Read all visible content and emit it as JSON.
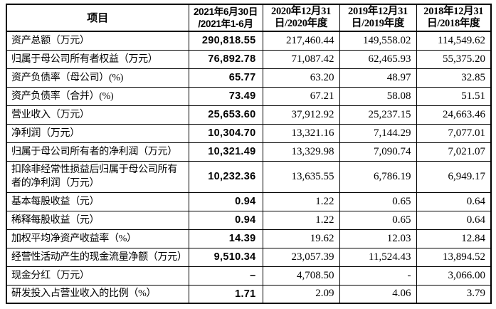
{
  "page": {
    "background_color": "#ffffff",
    "border_color": "#000000",
    "text_color": "#000000"
  },
  "table": {
    "columns": [
      {
        "label": "项目"
      },
      {
        "label": "2021年6月30日\n/2021年1-6月"
      },
      {
        "label": "2020年12月31\n日/2020年度"
      },
      {
        "label": "2019年12月31\n日/2019年度"
      },
      {
        "label": "2018年12月31\n日/2018年度"
      }
    ],
    "rows": [
      {
        "label": "资产总额（万元）",
        "tall": false,
        "values": [
          "290,818.55",
          "217,460.44",
          "149,558.02",
          "114,549.62"
        ]
      },
      {
        "label": "归属于母公司所有者权益（万元）",
        "tall": false,
        "values": [
          "76,892.78",
          "71,087.42",
          "62,465.93",
          "55,375.20"
        ]
      },
      {
        "label": "资产负债率（母公司）(%)",
        "tall": false,
        "values": [
          "65.77",
          "63.20",
          "48.97",
          "32.85"
        ]
      },
      {
        "label": "资产负债率（合并）(%)",
        "tall": false,
        "values": [
          "73.49",
          "67.21",
          "58.08",
          "51.51"
        ]
      },
      {
        "label": "营业收入（万元）",
        "tall": false,
        "values": [
          "25,653.60",
          "37,912.92",
          "25,237.15",
          "24,663.46"
        ]
      },
      {
        "label": "净利润（万元）",
        "tall": false,
        "values": [
          "10,304.70",
          "13,321.16",
          "7,144.29",
          "7,077.01"
        ]
      },
      {
        "label": "归属于母公司所有者的净利润（万元）",
        "tall": false,
        "values": [
          "10,321.49",
          "13,329.98",
          "7,090.74",
          "7,021.07"
        ]
      },
      {
        "label": "扣除非经常性损益后归属于母公司所有者的净利润（万元）",
        "tall": true,
        "values": [
          "10,232.36",
          "13,635.55",
          "6,786.19",
          "6,949.17"
        ]
      },
      {
        "label": "基本每股收益（元）",
        "tall": false,
        "values": [
          "0.94",
          "1.22",
          "0.65",
          "0.64"
        ]
      },
      {
        "label": "稀释每股收益（元）",
        "tall": false,
        "values": [
          "0.94",
          "1.22",
          "0.65",
          "0.64"
        ]
      },
      {
        "label": "加权平均净资产收益率（%）",
        "tall": false,
        "values": [
          "14.39",
          "19.62",
          "12.03",
          "12.84"
        ]
      },
      {
        "label": "经营性活动产生的现金流量净额（万元）",
        "tall": false,
        "values": [
          "9,510.34",
          "23,057.39",
          "11,524.43",
          "13,894.52"
        ]
      },
      {
        "label": "现金分红（万元）",
        "tall": false,
        "values": [
          "–",
          "4,708.50",
          "-",
          "3,066.00"
        ]
      },
      {
        "label": "研发投入占营业收入的比例（%）",
        "tall": false,
        "values": [
          "1.71",
          "2.09",
          "4.06",
          "3.79"
        ]
      }
    ]
  }
}
